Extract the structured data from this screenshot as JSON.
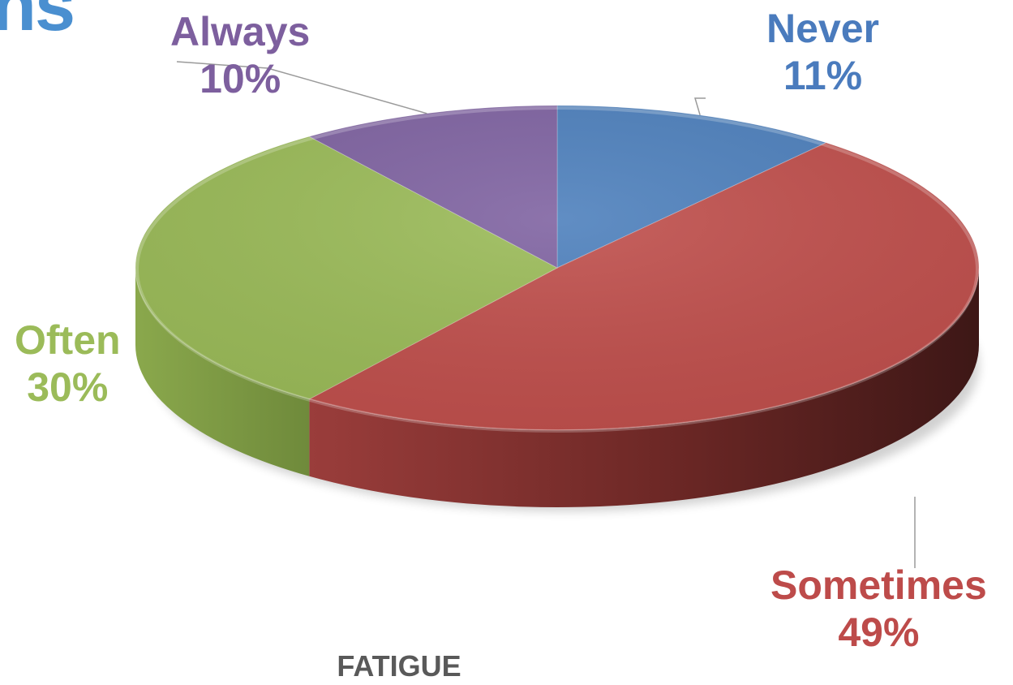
{
  "page": {
    "heading_fragment": "ns"
  },
  "chart_data": {
    "type": "pie",
    "title": "FATIGUE",
    "categories": [
      "Never",
      "Sometimes",
      "Often",
      "Always"
    ],
    "values": [
      11,
      49,
      30,
      10
    ],
    "percent_labels": [
      "11%",
      "49%",
      "30%",
      "10%"
    ],
    "colors": [
      "#4f81bd",
      "#c0504d",
      "#9bbb59",
      "#8064a2"
    ],
    "style": "3d",
    "start_angle_deg": 0,
    "direction": "clockwise",
    "legend": "none",
    "data_labels": "category-and-percent, outside"
  }
}
